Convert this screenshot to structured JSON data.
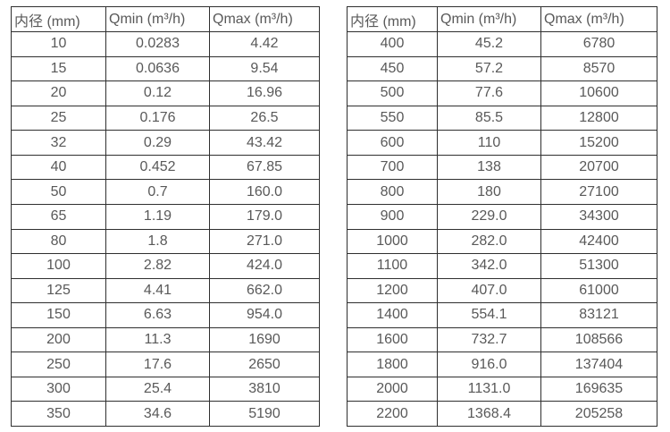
{
  "page": {
    "background_color": "#ffffff",
    "text_color": "#595959",
    "border_color": "#2f2f2f"
  },
  "tables": [
    {
      "id": "left",
      "headers": [
        "内径 (mm)",
        "Qmin (m³/h)",
        "Qmax (m³/h)"
      ],
      "rows": [
        [
          "10",
          "0.0283",
          "4.42"
        ],
        [
          "15",
          "0.0636",
          "9.54"
        ],
        [
          "20",
          "0.12",
          "16.96"
        ],
        [
          "25",
          "0.176",
          "26.5"
        ],
        [
          "32",
          "0.29",
          "43.42"
        ],
        [
          "40",
          "0.452",
          "67.85"
        ],
        [
          "50",
          "0.7",
          "160.0"
        ],
        [
          "65",
          "1.19",
          "179.0"
        ],
        [
          "80",
          "1.8",
          "271.0"
        ],
        [
          "100",
          "2.82",
          "424.0"
        ],
        [
          "125",
          "4.41",
          "662.0"
        ],
        [
          "150",
          "6.63",
          "954.0"
        ],
        [
          "200",
          "11.3",
          "1690"
        ],
        [
          "250",
          "17.6",
          "2650"
        ],
        [
          "300",
          "25.4",
          "3810"
        ],
        [
          "350",
          "34.6",
          "5190"
        ]
      ]
    },
    {
      "id": "right",
      "headers": [
        "内径 (mm)",
        "Qmin (m³/h)",
        "Qmax (m³/h)"
      ],
      "rows": [
        [
          "400",
          "45.2",
          "6780"
        ],
        [
          "450",
          "57.2",
          "8570"
        ],
        [
          "500",
          "77.6",
          "10600"
        ],
        [
          "550",
          "85.5",
          "12800"
        ],
        [
          "600",
          "110",
          "15200"
        ],
        [
          "700",
          "138",
          "20700"
        ],
        [
          "800",
          "180",
          "27100"
        ],
        [
          "900",
          "229.0",
          "34300"
        ],
        [
          "1000",
          "282.0",
          "42400"
        ],
        [
          "1100",
          "342.0",
          "51300"
        ],
        [
          "1200",
          "407.0",
          "61000"
        ],
        [
          "1400",
          "554.1",
          "83121"
        ],
        [
          "1600",
          "732.7",
          "108566"
        ],
        [
          "1800",
          "916.0",
          "137404"
        ],
        [
          "2000",
          "1131.0",
          "169635"
        ],
        [
          "2200",
          "1368.4",
          "205258"
        ]
      ]
    }
  ]
}
